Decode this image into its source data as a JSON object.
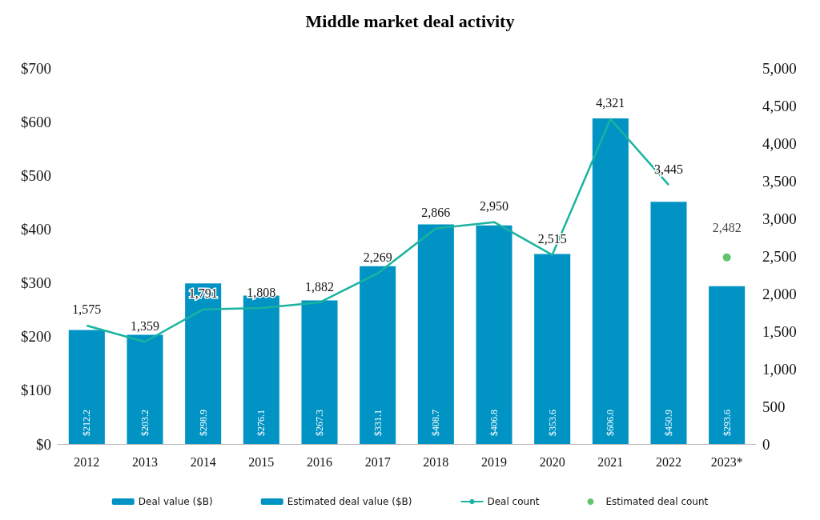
{
  "chart_data": {
    "type": "bar",
    "title": "Middle market deal activity",
    "categories": [
      "2012",
      "2013",
      "2014",
      "2015",
      "2016",
      "2017",
      "2018",
      "2019",
      "2020",
      "2021",
      "2022",
      "2023*"
    ],
    "series": [
      {
        "name": "Deal value ($B)",
        "color": "#0093c4",
        "values": [
          212.2,
          203.2,
          298.9,
          276.1,
          267.3,
          331.1,
          408.7,
          406.8,
          353.6,
          606.0,
          450.9,
          null
        ],
        "value_labels": [
          "$212.2",
          "$203.2",
          "$298.9",
          "$276.1",
          "$267.3",
          "$331.1",
          "$408.7",
          "$406.8",
          "$353.6",
          "$606.0",
          "$450.9",
          null
        ]
      },
      {
        "name": "Estimated deal value ($B)",
        "color": "#0093c4",
        "values": [
          null,
          null,
          null,
          null,
          null,
          null,
          null,
          null,
          null,
          null,
          null,
          293.6
        ],
        "value_labels": [
          null,
          null,
          null,
          null,
          null,
          null,
          null,
          null,
          null,
          null,
          null,
          "$293.6"
        ]
      },
      {
        "name": "Deal count",
        "type": "line",
        "axis": "y2",
        "color": "#1ab3a0",
        "marker": "none",
        "values": [
          1575,
          1359,
          1791,
          1808,
          1882,
          2269,
          2866,
          2950,
          2515,
          4321,
          3445,
          null
        ],
        "value_labels": [
          "1,575",
          "1,359",
          "1,791",
          "1,808",
          "1,882",
          "2,269",
          "2,866",
          "2,950",
          "2,515",
          "4,321",
          "3,445",
          null
        ]
      },
      {
        "name": "Estimated deal count",
        "type": "scatter",
        "axis": "y2",
        "color": "#3cb54a",
        "marker": "circle",
        "values": [
          null,
          null,
          null,
          null,
          null,
          null,
          null,
          null,
          null,
          null,
          null,
          2482
        ],
        "value_labels": [
          null,
          null,
          null,
          null,
          null,
          null,
          null,
          null,
          null,
          null,
          null,
          "2,482"
        ]
      }
    ],
    "ylim": [
      0,
      700
    ],
    "yticks": [
      {
        "value": 0,
        "label": "$0"
      },
      {
        "value": 100,
        "label": "$100"
      },
      {
        "value": 200,
        "label": "$200"
      },
      {
        "value": 300,
        "label": "$300"
      },
      {
        "value": 400,
        "label": "$400"
      },
      {
        "value": 500,
        "label": "$500"
      },
      {
        "value": 600,
        "label": "$600"
      },
      {
        "value": 700,
        "label": "$700"
      }
    ],
    "y2lim": [
      0,
      5000
    ],
    "y2ticks": [
      0,
      500,
      {
        "value": 1000,
        "label": "1,000"
      },
      {
        "value": 1500,
        "label": "1,500"
      },
      {
        "value": 2000,
        "label": "2,000"
      },
      {
        "value": 2500,
        "label": "2,500"
      },
      {
        "value": 3000,
        "label": "3,000"
      },
      {
        "value": 3500,
        "label": "3,500"
      },
      {
        "value": 4000,
        "label": "4,000"
      },
      {
        "value": 4500,
        "label": "4,500"
      },
      {
        "value": 5000,
        "label": "5,000"
      }
    ],
    "grid": false,
    "legend": "bottom"
  }
}
